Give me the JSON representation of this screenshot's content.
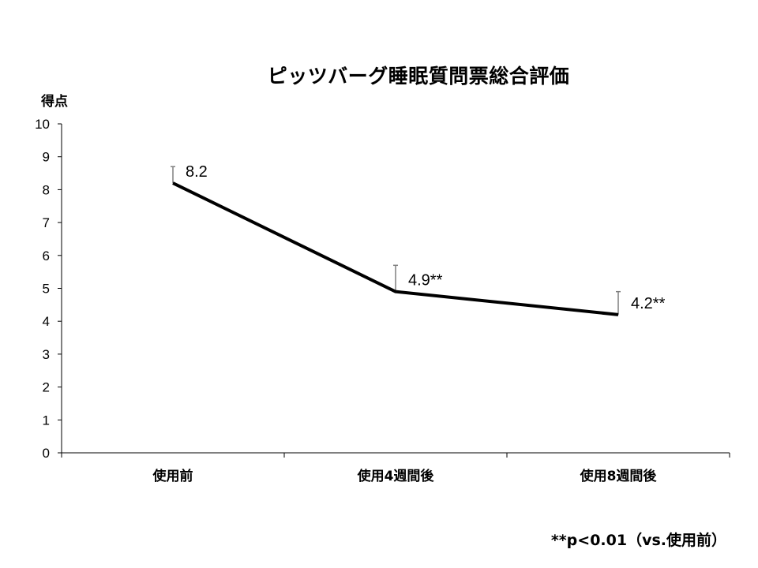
{
  "chart_data": {
    "type": "line",
    "title": "ピッツバーグ睡眠質問票総合評価",
    "ylabel": "得点",
    "xlabel": "",
    "categories": [
      "使用前",
      "使用4週間後",
      "使用8週間後"
    ],
    "series": [
      {
        "values": [
          8.2,
          4.9,
          4.2
        ],
        "error_upper": [
          0.5,
          0.8,
          0.7
        ],
        "data_labels": [
          "8.2",
          "4.9**",
          "4.2**"
        ],
        "color": "#000000"
      }
    ],
    "ylim": [
      0,
      10
    ],
    "yticks": [
      0,
      1,
      2,
      3,
      4,
      5,
      6,
      7,
      8,
      9,
      10
    ],
    "grid": false,
    "legend": "none",
    "error_bar_color": "#7f7f7f"
  },
  "footnote": "**p<0.01（vs.使用前）"
}
